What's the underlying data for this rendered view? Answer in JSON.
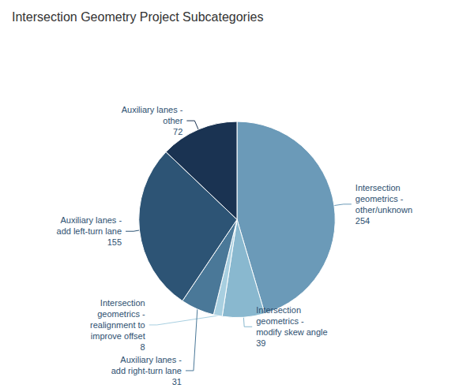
{
  "chart_data": {
    "type": "pie",
    "title": "Intersection Geometry Project Subcategories",
    "categories": [
      "Intersection\ngeometrics -\nother/unknown\n254",
      "Intersection\ngeometrics -\nmodify skew angle\n39",
      "Intersection\ngeometrics -\nrealignment to\nimprove offset\n8",
      "Auxiliary lanes -\nadd right-turn lane\n31",
      "Auxiliary lanes -\nadd left-turn lane\n155",
      "Auxiliary lanes -\nother\n72"
    ],
    "values": [
      254,
      39,
      8,
      31,
      155,
      72
    ],
    "colors": [
      "#6b9ab8",
      "#89b8cf",
      "#a8cfe0",
      "#4a7898",
      "#2d5475",
      "#1a3352"
    ]
  }
}
